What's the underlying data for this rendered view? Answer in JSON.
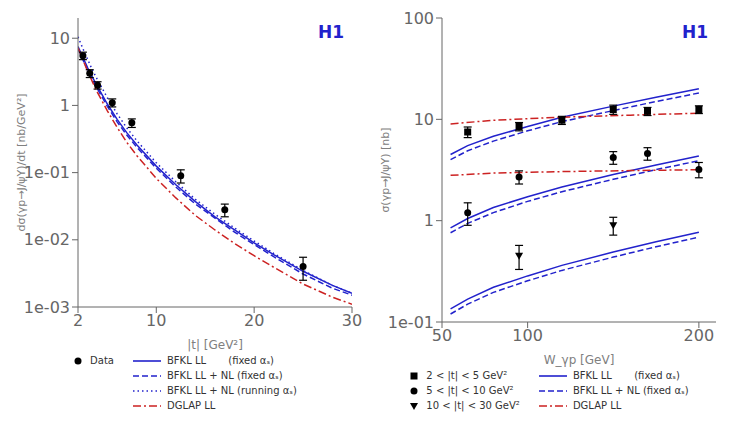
{
  "chart_data": [
    {
      "type": "line",
      "xlabel": "|t| [GeV²]",
      "ylabel": "dσ(γp→J/ψY)/dt  [nb/GeV²]",
      "annotations": [
        {
          "text": "H1",
          "color": "#2222CC"
        }
      ],
      "log": "y",
      "grid": false,
      "legend": "bottom",
      "xlim": [
        2,
        30
      ],
      "xticks": [
        2,
        10,
        20,
        30
      ],
      "ylim": [
        0.001,
        20
      ],
      "yticks": [
        {
          "value": 0.001,
          "label": "1e-03"
        },
        {
          "value": 0.01,
          "label": "1e-02"
        },
        {
          "value": 0.1,
          "label": "1e-01"
        },
        1,
        10
      ],
      "series": [
        {
          "name": "Data",
          "type": "scatter",
          "marker": "circle",
          "color": "#000000",
          "x": [
            2.5,
            3.2,
            4.0,
            5.5,
            7.5,
            12.5,
            17.0,
            25.0
          ],
          "values": [
            5.5,
            3.0,
            2.0,
            1.1,
            0.55,
            0.09,
            0.028,
            0.004
          ],
          "errors_low": [
            0.7,
            0.4,
            0.25,
            0.15,
            0.08,
            0.02,
            0.006,
            0.0015
          ],
          "errors_high": [
            0.7,
            0.4,
            0.25,
            0.15,
            0.08,
            0.02,
            0.006,
            0.0015
          ]
        },
        {
          "name": "BFKL LL       (fixed αₛ)",
          "type": "line",
          "line_style": "solid",
          "color": "#2222CC",
          "x": [
            2.0,
            2.5,
            3.0,
            3.5,
            4.0,
            5.0,
            6.0,
            7.0,
            8.0,
            10.0,
            12.0,
            14.0,
            16.0,
            18.0,
            20.0,
            22.0,
            25.0,
            28.0,
            30.0
          ],
          "values": [
            7.5,
            5.2,
            3.6,
            2.6,
            1.9,
            1.05,
            0.62,
            0.39,
            0.26,
            0.125,
            0.066,
            0.037,
            0.022,
            0.014,
            0.009,
            0.006,
            0.0034,
            0.0021,
            0.0016
          ]
        },
        {
          "name": "BFKL LL + NL (fixed αₛ)",
          "type": "line",
          "line_style": "dashed",
          "color": "#2222CC",
          "x": [
            2.0,
            2.5,
            3.0,
            3.5,
            4.0,
            5.0,
            6.0,
            7.0,
            8.0,
            10.0,
            12.0,
            14.0,
            16.0,
            18.0,
            20.0,
            22.0,
            25.0,
            28.0,
            30.0
          ],
          "values": [
            7.0,
            4.8,
            3.3,
            2.4,
            1.75,
            0.97,
            0.57,
            0.36,
            0.24,
            0.116,
            0.061,
            0.034,
            0.021,
            0.013,
            0.0085,
            0.0056,
            0.0031,
            0.0019,
            0.0015
          ]
        },
        {
          "name": "BFKL LL + NL (running αₛ)",
          "type": "line",
          "line_style": "dotted",
          "color": "#2222CC",
          "x": [
            2.0,
            2.5,
            3.0,
            3.5,
            4.0,
            5.0,
            6.0,
            7.0,
            8.0,
            10.0,
            12.0,
            14.0,
            16.0,
            18.0,
            20.0,
            22.0,
            25.0,
            28.0,
            30.0
          ],
          "values": [
            10.5,
            7.0,
            4.8,
            3.3,
            2.4,
            1.3,
            0.75,
            0.46,
            0.3,
            0.14,
            0.073,
            0.04,
            0.024,
            0.015,
            0.0096,
            0.0063,
            0.0035,
            0.0021,
            0.0016
          ]
        },
        {
          "name": "DGLAP LL",
          "type": "line",
          "line_style": "dashdot",
          "color": "#CC2222",
          "x": [
            2.0,
            2.5,
            3.0,
            3.5,
            4.0,
            5.0,
            6.0,
            7.0,
            8.0,
            10.0,
            12.0,
            14.0,
            16.0,
            18.0,
            20.0,
            22.0,
            25.0,
            28.0,
            30.0
          ],
          "values": [
            7.2,
            4.8,
            3.2,
            2.2,
            1.55,
            0.83,
            0.47,
            0.28,
            0.18,
            0.082,
            0.042,
            0.023,
            0.014,
            0.0088,
            0.0058,
            0.0039,
            0.0022,
            0.0014,
            0.0011
          ]
        }
      ]
    },
    {
      "type": "line",
      "xlabel": "W_γp [GeV]",
      "ylabel": "σ(γp→J/ψY)  [nb]",
      "annotations": [
        {
          "text": "H1",
          "color": "#2222CC"
        }
      ],
      "log": "y",
      "grid": false,
      "legend": "bottom",
      "xlim": [
        50,
        210
      ],
      "xticks": [
        50,
        100,
        200
      ],
      "ylim": [
        0.1,
        100
      ],
      "yticks": [
        {
          "value": 0.1,
          "label": "1e-01"
        },
        1,
        10,
        100
      ],
      "series": [
        {
          "name": "2 < |t| < 5 GeV²",
          "type": "scatter",
          "marker": "square",
          "color": "#000000",
          "x": [
            65,
            95,
            120,
            150,
            170,
            200
          ],
          "values": [
            7.5,
            8.5,
            9.8,
            12.5,
            12.0,
            12.5
          ],
          "errors_low": [
            0.9,
            0.8,
            0.9,
            1.3,
            1.1,
            1.1
          ],
          "errors_high": [
            0.9,
            0.8,
            0.9,
            1.3,
            1.1,
            1.1
          ]
        },
        {
          "name": "5 < |t| < 10 GeV²",
          "type": "scatter",
          "marker": "circle",
          "color": "#000000",
          "x": [
            65,
            95,
            150,
            170,
            200
          ],
          "values": [
            1.2,
            2.7,
            4.2,
            4.6,
            3.2
          ],
          "errors_low": [
            0.3,
            0.4,
            0.6,
            0.65,
            0.55
          ],
          "errors_high": [
            0.3,
            0.4,
            0.6,
            0.65,
            0.55
          ]
        },
        {
          "name": "10 < |t| < 30 GeV²",
          "type": "scatter",
          "marker": "triangle_down",
          "color": "#000000",
          "x": [
            95,
            150
          ],
          "values": [
            0.45,
            0.9
          ],
          "errors_low": [
            0.12,
            0.18
          ],
          "errors_high": [
            0.12,
            0.18
          ]
        },
        {
          "name": "BFKL LL       (fixed αₛ)",
          "type": "line",
          "line_style": "solid",
          "color": "#2222CC",
          "x": [
            55,
            65,
            80,
            100,
            120,
            150,
            175,
            200
          ],
          "values": [
            4.5,
            5.5,
            6.8,
            8.5,
            10.5,
            13.5,
            16.5,
            20.0
          ]
        },
        {
          "name": "BFKL LL + NL (fixed αₛ)",
          "type": "line",
          "line_style": "dashed",
          "color": "#2222CC",
          "x": [
            55,
            65,
            80,
            100,
            120,
            150,
            175,
            200
          ],
          "values": [
            4.0,
            4.9,
            6.1,
            7.7,
            9.5,
            12.2,
            15.0,
            18.2
          ]
        },
        {
          "name": "DGLAP LL",
          "type": "line",
          "line_style": "dashdot",
          "color": "#CC2222",
          "x": [
            55,
            80,
            120,
            160,
            200
          ],
          "values": [
            9.0,
            9.8,
            10.5,
            11.0,
            11.5
          ]
        },
        {
          "name": "BFKL LL       (fixed αₛ)",
          "type": "line",
          "line_style": "solid",
          "color": "#2222CC",
          "x": [
            55,
            65,
            80,
            100,
            120,
            150,
            175,
            200
          ],
          "values": [
            0.85,
            1.05,
            1.35,
            1.72,
            2.15,
            2.85,
            3.55,
            4.35
          ]
        },
        {
          "name": "BFKL LL + NL (fixed αₛ)",
          "type": "line",
          "line_style": "dashed",
          "color": "#2222CC",
          "x": [
            55,
            65,
            80,
            100,
            120,
            150,
            175,
            200
          ],
          "values": [
            0.76,
            0.94,
            1.2,
            1.55,
            1.93,
            2.56,
            3.19,
            3.9
          ]
        },
        {
          "name": "DGLAP LL",
          "type": "line",
          "line_style": "dashdot",
          "color": "#CC2222",
          "x": [
            55,
            80,
            120,
            160,
            200
          ],
          "values": [
            2.8,
            2.95,
            3.05,
            3.12,
            3.18
          ]
        },
        {
          "name": "BFKL LL       (fixed αₛ)",
          "type": "line",
          "line_style": "solid",
          "color": "#2222CC",
          "x": [
            55,
            65,
            80,
            100,
            120,
            150,
            175,
            200
          ],
          "values": [
            0.135,
            0.168,
            0.22,
            0.285,
            0.362,
            0.49,
            0.62,
            0.77
          ]
        },
        {
          "name": "BFKL LL + NL (fixed αₛ)",
          "type": "line",
          "line_style": "dashed",
          "color": "#2222CC",
          "x": [
            55,
            65,
            80,
            100,
            120,
            150,
            175,
            200
          ],
          "values": [
            0.12,
            0.15,
            0.196,
            0.255,
            0.323,
            0.437,
            0.553,
            0.687
          ]
        }
      ]
    }
  ]
}
